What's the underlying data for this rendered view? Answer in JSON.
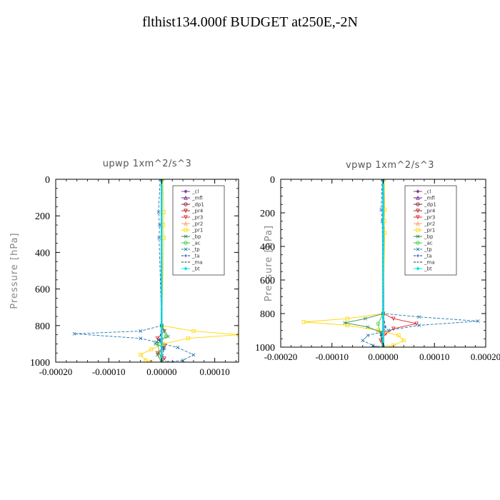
{
  "title": "flthist134.000f  BUDGET at250E,-2N",
  "chart_data": [
    {
      "type": "line",
      "title": "upwp   1xm^2/s^3",
      "ylabel": "Pressure [hPa]",
      "xlabel": "",
      "xlim": [
        -0.0002,
        0.000145
      ],
      "ylim": [
        1000,
        0
      ],
      "xticks": [
        -0.0002,
        -0.0001,
        0.0,
        0.0001
      ],
      "xtick_labels": [
        "-0.00020",
        "-0.00010",
        "0.00000",
        "0.00010"
      ],
      "yticks": [
        0,
        200,
        400,
        600,
        800,
        1000
      ],
      "ytick_labels": [
        "0",
        "200",
        "400",
        "600",
        "800",
        "1000"
      ],
      "legend_position": "top-right",
      "series": [
        {
          "name": "_cl",
          "color": "#7f3f98",
          "values": [
            [
              0,
              0
            ],
            [
              0,
              100
            ],
            [
              0,
              200
            ],
            [
              0,
              300
            ],
            [
              0,
              400
            ],
            [
              0,
              500
            ],
            [
              0,
              600
            ],
            [
              0,
              700
            ],
            [
              0,
              800
            ],
            [
              0,
              900
            ],
            [
              0,
              1000
            ]
          ]
        },
        {
          "name": "_mfl",
          "color": "#6a1b9a",
          "values": [
            [
              0,
              0
            ],
            [
              0,
              200
            ],
            [
              0,
              400
            ],
            [
              0,
              600
            ],
            [
              0,
              800
            ],
            [
              0,
              1000
            ]
          ]
        },
        {
          "name": "_dp1",
          "color": "#8b1a1a",
          "values": [
            [
              0,
              0
            ],
            [
              0,
              200
            ],
            [
              0,
              400
            ],
            [
              0,
              600
            ],
            [
              0,
              800
            ],
            [
              0,
              1000
            ]
          ]
        },
        {
          "name": "_pr4",
          "color": "#b22222",
          "values": [
            [
              0,
              0
            ],
            [
              0,
              200
            ],
            [
              0,
              400
            ],
            [
              0,
              600
            ],
            [
              0,
              800
            ],
            [
              0,
              1000
            ]
          ]
        },
        {
          "name": "_pr3",
          "color": "#e3242b",
          "values": [
            [
              0,
              0
            ],
            [
              0,
              800
            ],
            [
              5e-06,
              830
            ],
            [
              -8e-06,
              870
            ],
            [
              6e-06,
              910
            ],
            [
              -8e-06,
              950
            ],
            [
              5e-06,
              980
            ],
            [
              0,
              1000
            ]
          ]
        },
        {
          "name": "_pr2",
          "color": "#f4a460",
          "values": [
            [
              0,
              0
            ],
            [
              0,
              800
            ],
            [
              2e-06,
              900
            ],
            [
              0,
              1000
            ]
          ]
        },
        {
          "name": "_pr1",
          "color": "#ffd700",
          "values": [
            [
              2e-06,
              0
            ],
            [
              4e-06,
              180
            ],
            [
              3e-06,
              250
            ],
            [
              4e-06,
              320
            ],
            [
              0,
              800
            ],
            [
              6e-05,
              830
            ],
            [
              0.000145,
              850
            ],
            [
              5e-05,
              870
            ],
            [
              3e-06,
              900
            ],
            [
              -2e-05,
              930
            ],
            [
              -4e-05,
              960
            ],
            [
              -3e-05,
              990
            ],
            [
              -2e-05,
              1000
            ]
          ]
        },
        {
          "name": "_bp",
          "color": "#2e8b57",
          "values": [
            [
              0,
              0
            ],
            [
              0,
              800
            ],
            [
              1.2e-05,
              860
            ],
            [
              -6e-06,
              880
            ],
            [
              -1.2e-05,
              900
            ],
            [
              5e-06,
              920
            ],
            [
              -8e-06,
              960
            ],
            [
              0,
              1000
            ]
          ]
        },
        {
          "name": "_ac",
          "color": "#32cd32",
          "values": [
            [
              0,
              0
            ],
            [
              0,
              800
            ],
            [
              8e-06,
              860
            ],
            [
              -8e-06,
              900
            ],
            [
              0,
              1000
            ]
          ]
        },
        {
          "name": "_tp",
          "color": "#1f77b4",
          "values": [
            [
              -3e-06,
              0
            ],
            [
              -6e-06,
              180
            ],
            [
              -4e-06,
              250
            ],
            [
              -5e-06,
              320
            ],
            [
              0,
              800
            ],
            [
              -4e-05,
              830
            ],
            [
              -0.000165,
              845
            ],
            [
              -4e-05,
              870
            ],
            [
              -1e-05,
              890
            ],
            [
              3e-05,
              920
            ],
            [
              6e-05,
              960
            ],
            [
              4e-05,
              990
            ],
            [
              1e-05,
              1000
            ]
          ]
        },
        {
          "name": "_ta",
          "color": "#1e3fa0",
          "values": [
            [
              0,
              0
            ],
            [
              0,
              800
            ],
            [
              -4e-06,
              880
            ],
            [
              4e-06,
              930
            ],
            [
              0,
              1000
            ]
          ]
        },
        {
          "name": "_ma",
          "color": "#333333",
          "values": [
            [
              0,
              0
            ],
            [
              0,
              1000
            ]
          ]
        },
        {
          "name": "_bt",
          "color": "#00e5ee",
          "values": [
            [
              0,
              0
            ],
            [
              0,
              1000
            ]
          ]
        }
      ]
    },
    {
      "type": "line",
      "title": "vpwp   1xm^2/s^3",
      "ylabel": "Pressure [hPa]",
      "xlabel": "",
      "xlim": [
        -0.0002,
        0.0002
      ],
      "ylim": [
        1000,
        0
      ],
      "xticks": [
        -0.0002,
        -0.0001,
        0.0,
        0.0001,
        0.0002
      ],
      "xtick_labels": [
        "-0.00020",
        "-0.00010",
        "0.00000",
        "0.00010",
        "0.00020"
      ],
      "yticks": [
        0,
        200,
        400,
        600,
        800,
        1000
      ],
      "ytick_labels": [
        "0",
        "200",
        "400",
        "600",
        "800",
        "1000"
      ],
      "legend_position": "top-right",
      "series": [
        {
          "name": "_cl",
          "color": "#7f3f98",
          "values": [
            [
              0,
              0
            ],
            [
              0,
              200
            ],
            [
              0,
              400
            ],
            [
              0,
              600
            ],
            [
              0,
              800
            ],
            [
              0,
              1000
            ]
          ]
        },
        {
          "name": "_mfl",
          "color": "#6a1b9a",
          "values": [
            [
              0,
              0
            ],
            [
              0,
              200
            ],
            [
              0,
              400
            ],
            [
              0,
              600
            ],
            [
              0,
              800
            ],
            [
              0,
              1000
            ]
          ]
        },
        {
          "name": "_dp1",
          "color": "#8b1a1a",
          "values": [
            [
              0,
              0
            ],
            [
              0,
              200
            ],
            [
              0,
              400
            ],
            [
              0,
              600
            ],
            [
              0,
              800
            ],
            [
              0,
              1000
            ]
          ]
        },
        {
          "name": "_pr4",
          "color": "#b22222",
          "values": [
            [
              0,
              0
            ],
            [
              0,
              200
            ],
            [
              0,
              400
            ],
            [
              0,
              600
            ],
            [
              0,
              800
            ],
            [
              0,
              1000
            ]
          ]
        },
        {
          "name": "_pr3",
          "color": "#e3242b",
          "values": [
            [
              0,
              0
            ],
            [
              0,
              800
            ],
            [
              2e-05,
              830
            ],
            [
              6.5e-05,
              860
            ],
            [
              2e-05,
              890
            ],
            [
              5e-06,
              920
            ],
            [
              -5e-06,
              960
            ],
            [
              0,
              1000
            ]
          ]
        },
        {
          "name": "_pr2",
          "color": "#f4a460",
          "values": [
            [
              0,
              0
            ],
            [
              0,
              800
            ],
            [
              2e-06,
              900
            ],
            [
              0,
              1000
            ]
          ]
        },
        {
          "name": "_pr1",
          "color": "#ffd700",
          "values": [
            [
              2e-06,
              0
            ],
            [
              3e-06,
              180
            ],
            [
              2e-06,
              250
            ],
            [
              3e-06,
              320
            ],
            [
              0,
              800
            ],
            [
              -7e-05,
              830
            ],
            [
              -0.000155,
              850
            ],
            [
              -7e-05,
              870
            ],
            [
              -1e-05,
              900
            ],
            [
              3e-05,
              930
            ],
            [
              4e-05,
              960
            ],
            [
              2e-05,
              990
            ],
            [
              1e-05,
              1000
            ]
          ]
        },
        {
          "name": "_bp",
          "color": "#2e8b57",
          "values": [
            [
              0,
              0
            ],
            [
              0,
              800
            ],
            [
              -3.5e-05,
              830
            ],
            [
              -7.5e-05,
              855
            ],
            [
              -3e-05,
              880
            ],
            [
              -5e-06,
              910
            ],
            [
              0,
              1000
            ]
          ]
        },
        {
          "name": "_ac",
          "color": "#32cd32",
          "values": [
            [
              0,
              0
            ],
            [
              0,
              800
            ],
            [
              -1e-05,
              860
            ],
            [
              0,
              1000
            ]
          ]
        },
        {
          "name": "_tp",
          "color": "#1f77b4",
          "values": [
            [
              -2e-06,
              0
            ],
            [
              -4e-06,
              180
            ],
            [
              -2e-06,
              250
            ],
            [
              0,
              800
            ],
            [
              7e-05,
              820
            ],
            [
              0.000185,
              845
            ],
            [
              7e-05,
              870
            ],
            [
              1e-05,
              900
            ],
            [
              -3e-05,
              930
            ],
            [
              -4e-05,
              960
            ],
            [
              -2e-05,
              990
            ],
            [
              -1e-05,
              1000
            ]
          ]
        },
        {
          "name": "_ta",
          "color": "#1e3fa0",
          "values": [
            [
              0,
              0
            ],
            [
              0,
              800
            ],
            [
              4e-06,
              880
            ],
            [
              -4e-06,
              930
            ],
            [
              0,
              1000
            ]
          ]
        },
        {
          "name": "_ma",
          "color": "#333333",
          "values": [
            [
              0,
              0
            ],
            [
              0,
              1000
            ]
          ]
        },
        {
          "name": "_bt",
          "color": "#00e5ee",
          "values": [
            [
              0,
              0
            ],
            [
              0,
              1000
            ]
          ]
        }
      ]
    }
  ]
}
